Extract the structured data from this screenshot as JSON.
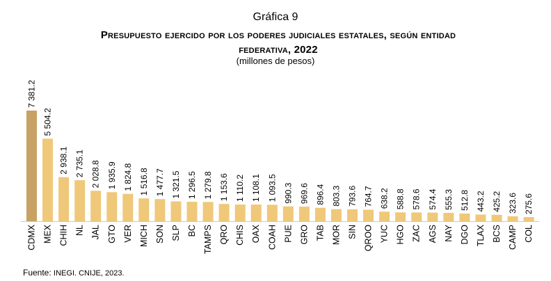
{
  "header": {
    "grafica": "Gráfica 9",
    "title_line1": "Presupuesto ejercido por los poderes judiciales estatales, según entidad",
    "title_line2": "federativa, 2022",
    "units": "(millones de pesos)"
  },
  "source": {
    "label": "Fuente:",
    "text": "INEGI. CNIJE, 2023."
  },
  "colors": {
    "first_bar": "#c8a165",
    "bars": "#efc879",
    "baseline": "#c9c9c9"
  },
  "chart_data": {
    "type": "bar",
    "title": "Presupuesto ejercido por los poderes judiciales estatales, según entidad federativa, 2022",
    "units": "(millones de pesos)",
    "categories": [
      "CDMX",
      "MEX",
      "CHIH",
      "NL",
      "JAL",
      "GTO",
      "VER",
      "MICH",
      "SON",
      "SLP",
      "BC",
      "TAMPS",
      "QRO",
      "CHIS",
      "OAX",
      "COAH",
      "PUE",
      "GRO",
      "TAB",
      "MOR",
      "SIN",
      "QROO",
      "YUC",
      "HGO",
      "ZAC",
      "AGS",
      "NAY",
      "DGO",
      "TLAX",
      "BCS",
      "CAMP",
      "COL"
    ],
    "values": [
      7381.2,
      5504.2,
      2938.1,
      2735.1,
      2028.8,
      1935.9,
      1824.8,
      1516.8,
      1477.7,
      1321.5,
      1296.5,
      1279.8,
      1153.6,
      1110.2,
      1108.1,
      1093.5,
      990.3,
      969.6,
      896.4,
      803.3,
      793.6,
      764.7,
      638.2,
      588.8,
      578.6,
      574.4,
      555.3,
      512.8,
      443.2,
      425.2,
      323.6,
      275.6
    ],
    "value_labels": [
      "7 381.2",
      "5 504.2",
      "2 938.1",
      "2 735.1",
      "2 028.8",
      "1 935.9",
      "1 824.8",
      "1 516.8",
      "1 477.7",
      "1 321.5",
      "1 296.5",
      "1 279.8",
      "1 153.6",
      "1 110.2",
      "1 108.1",
      "1 093.5",
      "990.3",
      "969.6",
      "896.4",
      "803.3",
      "793.6",
      "764.7",
      "638.2",
      "588.8",
      "578.6",
      "574.4",
      "555.3",
      "512.8",
      "443.2",
      "425.2",
      "323.6",
      "275.6"
    ],
    "grid": false,
    "legend": "none"
  }
}
